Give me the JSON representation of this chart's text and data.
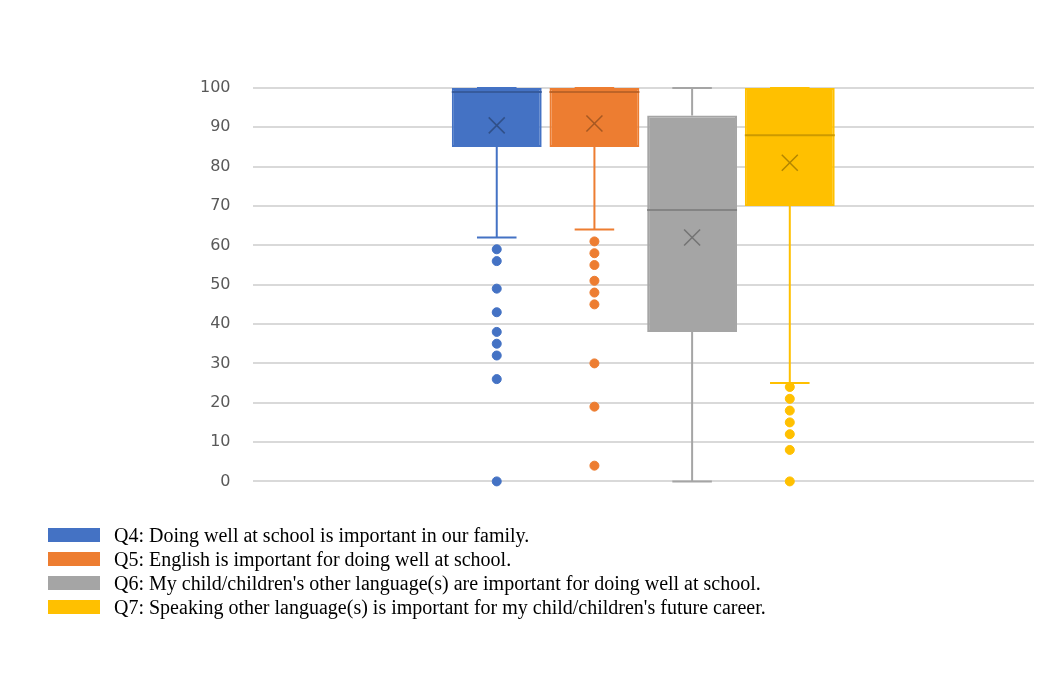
{
  "chart_data": {
    "type": "box",
    "categories": [
      null
    ],
    "ylim": [
      0,
      100
    ],
    "yticks": [
      0,
      10,
      20,
      30,
      40,
      50,
      60,
      70,
      80,
      90,
      100
    ],
    "grid": "y",
    "legend": "bottom",
    "series": [
      {
        "name": "Q4: Doing well at school is important in our family.",
        "color": "#4472c4",
        "boxes": [
          {
            "low": 62,
            "q1": 85,
            "median": 99,
            "q3": 100,
            "high": 100,
            "mean": 90.5,
            "outliers": [
              59,
              56,
              49,
              43,
              38,
              35,
              32,
              26,
              0
            ]
          }
        ]
      },
      {
        "name": "Q5:  English is important for doing well at school.",
        "color": "#ed7d31",
        "boxes": [
          {
            "low": 64,
            "q1": 85,
            "median": 99,
            "q3": 100,
            "high": 100,
            "mean": 91,
            "outliers": [
              61,
              58,
              55,
              51,
              48,
              45,
              30,
              19,
              4
            ]
          }
        ]
      },
      {
        "name": "Q6:  My child/children's other language(s) are important for doing well at school.",
        "color": "#a5a5a5",
        "boxes": [
          {
            "low": 0,
            "q1": 38,
            "median": 69,
            "q3": 93,
            "high": 100,
            "mean": 62
          }
        ]
      },
      {
        "name": "Q7: Speaking other language(s) is important for my child/children's future career.",
        "color": "#ffc000",
        "boxes": [
          {
            "low": 25,
            "q1": 70,
            "median": 88,
            "q3": 100,
            "high": 100,
            "mean": 81,
            "outliers": [
              24,
              21,
              18,
              15,
              12,
              8,
              0
            ]
          }
        ]
      }
    ]
  }
}
